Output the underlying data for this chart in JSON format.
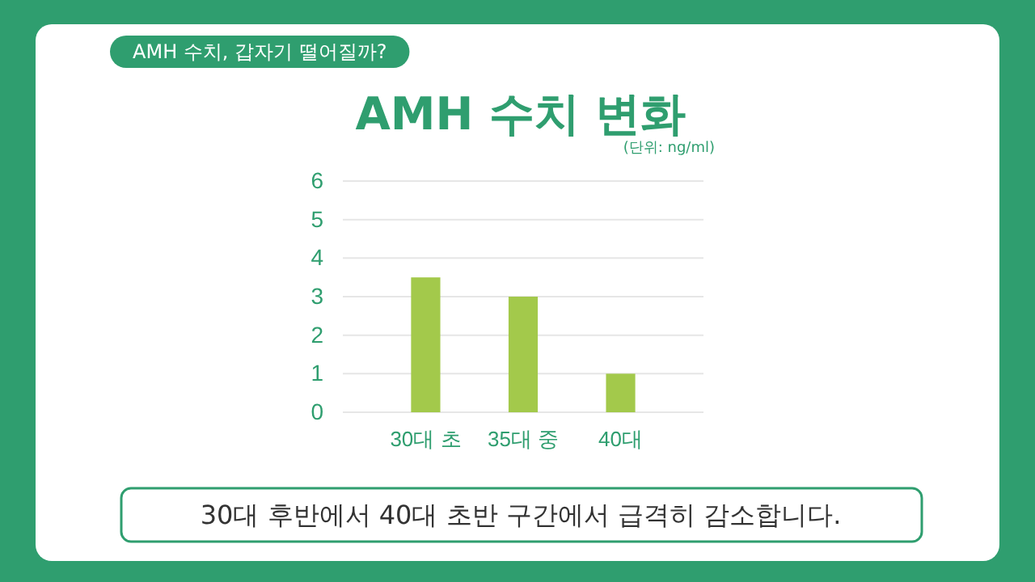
{
  "chart_data": {
    "type": "bar",
    "title": "AMH 수치 변화",
    "subtitle": "AMH 수치, 갑자기 떨어질까?",
    "ylabel": "(단위: ng/ml)",
    "categories": [
      "30대 초",
      "35대 중",
      "40대"
    ],
    "values": [
      3.5,
      3,
      1
    ],
    "color": "#a3c94b",
    "ylim": [
      0,
      6
    ],
    "yticks": [
      0,
      1,
      2,
      3,
      4,
      5,
      6
    ],
    "grid": "y",
    "annotations": [
      "30대 후반에서 40대 초반 구간에서 급격히 감소합니다."
    ]
  }
}
